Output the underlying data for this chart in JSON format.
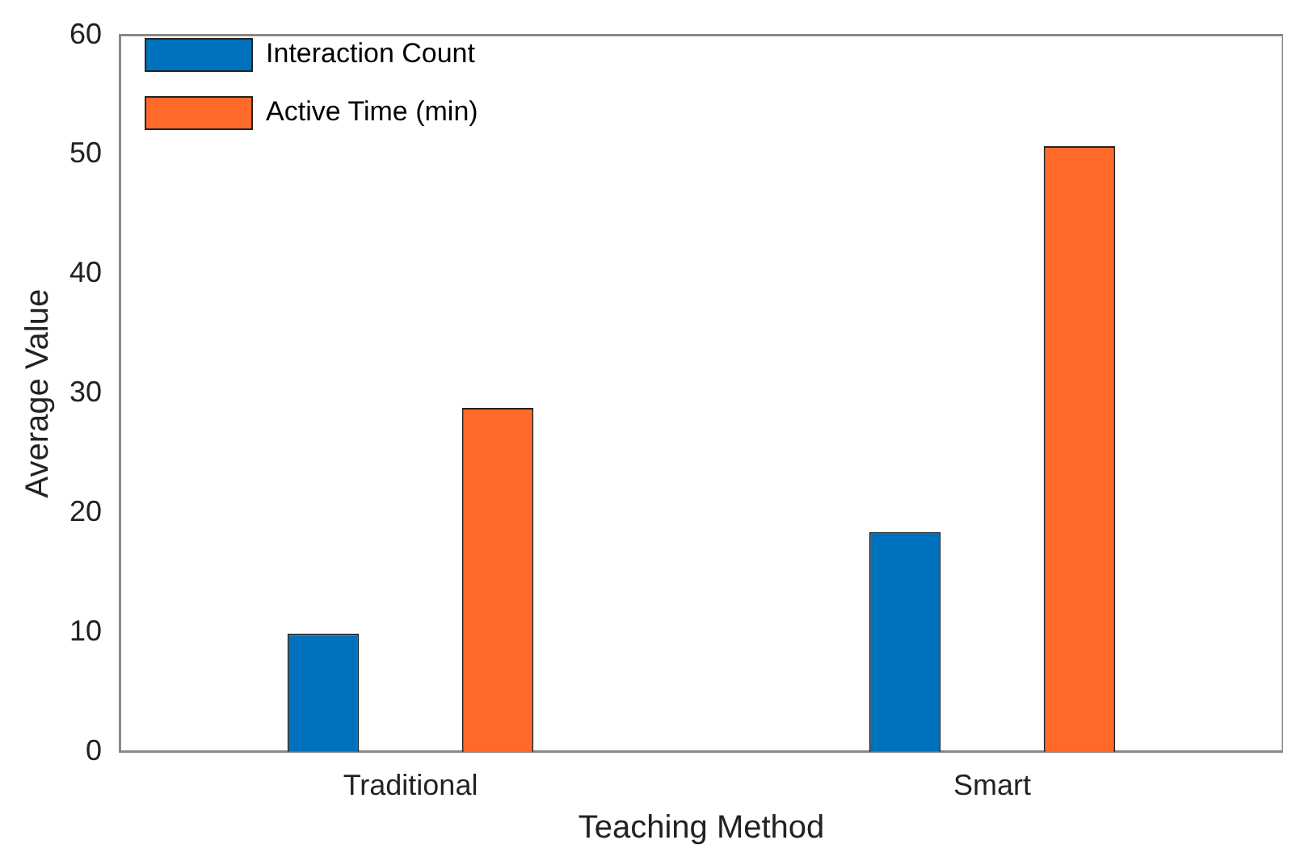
{
  "chart_data": {
    "type": "bar",
    "xlabel": "Teaching Method",
    "ylabel": "Average Value",
    "categories": [
      "Traditional",
      "Smart"
    ],
    "series": [
      {
        "name": "Interaction Count",
        "color": "#0072bd",
        "values": [
          9.9,
          18.4
        ]
      },
      {
        "name": "Active Time (min)",
        "color": "#ff6929",
        "values": [
          28.8,
          50.7
        ]
      }
    ],
    "ylim": [
      0,
      60
    ],
    "yticks": [
      0,
      10,
      20,
      30,
      40,
      50,
      60
    ],
    "grid": false,
    "legend": "top left"
  }
}
